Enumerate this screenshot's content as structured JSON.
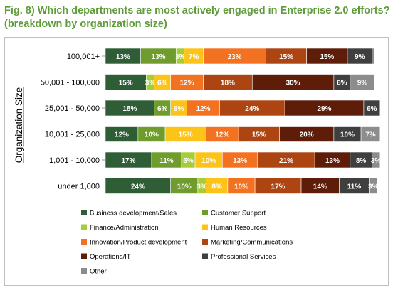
{
  "title": {
    "line1": "Fig. 8)  Which departments are most actively engaged in Enterprise 2.0 efforts?",
    "line2": "(breakdown by organization size)"
  },
  "colors": {
    "title": "#5e9c3a",
    "border": "#bfbfbf"
  },
  "chart_data": {
    "type": "bar",
    "orientation": "horizontal",
    "stacked": true,
    "percent_stacked": true,
    "ylabel": "Organization Size",
    "categories": [
      "100,001+",
      "50,001 - 100,000",
      "25,001 - 50,000",
      "10,001 - 25,000",
      "1,001 - 10,000",
      "under 1,000"
    ],
    "series": [
      {
        "name": "Business development/Sales",
        "color": "#2e5d36",
        "values": [
          13,
          15,
          18,
          12,
          17,
          24
        ]
      },
      {
        "name": "Customer Support",
        "color": "#6f9c2c",
        "values": [
          13,
          0,
          6,
          10,
          11,
          10
        ]
      },
      {
        "name": "Finance/Administration",
        "color": "#a6cc38",
        "values": [
          3,
          3,
          0,
          0,
          5,
          3
        ]
      },
      {
        "name": "Human Resources",
        "color": "#fcc419",
        "values": [
          7,
          6,
          6,
          15,
          10,
          8
        ]
      },
      {
        "name": "Innovation/Product development",
        "color": "#f27221",
        "values": [
          23,
          12,
          12,
          12,
          13,
          10
        ]
      },
      {
        "name": "Marketing/Communications",
        "color": "#ad4512",
        "values": [
          15,
          18,
          24,
          15,
          21,
          17
        ]
      },
      {
        "name": "Operations/IT",
        "color": "#5d1d08",
        "values": [
          15,
          30,
          29,
          20,
          13,
          14
        ]
      },
      {
        "name": "Professional Services",
        "color": "#3f3f3f",
        "values": [
          9,
          6,
          6,
          10,
          8,
          11
        ]
      },
      {
        "name": "Other",
        "color": "#8c8c8c",
        "values": [
          1,
          9,
          0,
          7,
          3,
          3
        ]
      }
    ],
    "value_labels": [
      [
        "13%",
        "13%",
        "3%",
        "7%",
        "23%",
        "15%",
        "15%",
        "9%",
        ""
      ],
      [
        "15%",
        "",
        "3%",
        "6%",
        "12%",
        "18%",
        "30%",
        "6%",
        "9%"
      ],
      [
        "18%",
        "6%",
        "",
        "6%",
        "12%",
        "24%",
        "29%",
        "6%",
        ""
      ],
      [
        "12%",
        "10%",
        "",
        "15%",
        "12%",
        "15%",
        "20%",
        "10%",
        "7%"
      ],
      [
        "17%",
        "11%",
        "5%",
        "10%",
        "13%",
        "21%",
        "13%",
        "8%",
        "3%"
      ],
      [
        "24%",
        "10%",
        "3%",
        "8%",
        "10%",
        "17%",
        "14%",
        "11%",
        "3%"
      ]
    ],
    "xlim": [
      0,
      100
    ],
    "grid": false,
    "legend_position": "bottom"
  }
}
